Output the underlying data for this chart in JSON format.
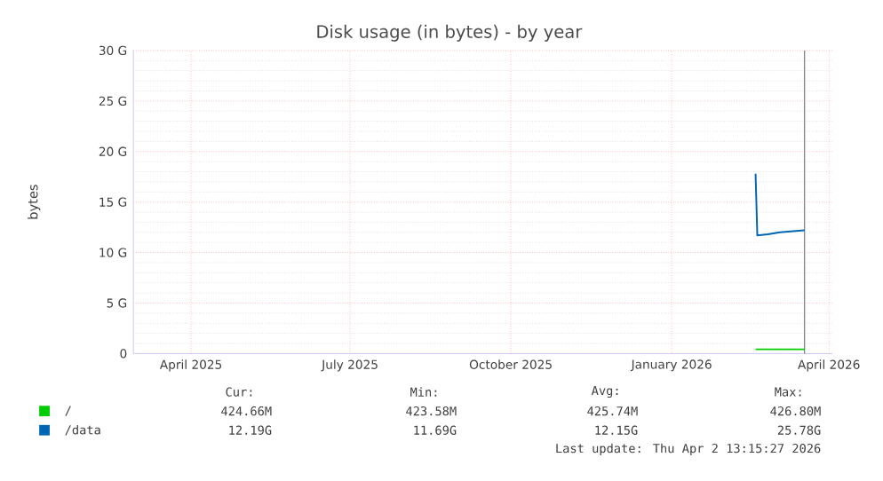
{
  "chart_data": {
    "type": "line",
    "title": "Disk usage (in bytes) - by year",
    "ylabel": "bytes",
    "xlim": [
      "2025-03-14",
      "2026-04-18"
    ],
    "xticks": [
      {
        "value": "2025-04-16",
        "label": "April 2025"
      },
      {
        "value": "2025-07-16",
        "label": "July 2025"
      },
      {
        "value": "2025-10-16",
        "label": "October 2025"
      },
      {
        "value": "2026-01-16",
        "label": "January 2026"
      },
      {
        "value": "2026-04-16",
        "label": "April 2026"
      }
    ],
    "ylim": [
      0,
      30
    ],
    "yticks": [
      {
        "value": 0,
        "label": "0"
      },
      {
        "value": 5,
        "label": "5 G"
      },
      {
        "value": 10,
        "label": "10 G"
      },
      {
        "value": 15,
        "label": "15 G"
      },
      {
        "value": 20,
        "label": "20 G"
      },
      {
        "value": 25,
        "label": "25 G"
      },
      {
        "value": 30,
        "label": "30 G"
      }
    ],
    "grid": true,
    "legend": "bottom left",
    "series": [
      {
        "name": "/",
        "color": "#00cc00",
        "x": [
          "2026-03-05",
          "2026-04-02"
        ],
        "values": [
          0.42,
          0.42
        ]
      },
      {
        "name": "/data",
        "color": "#0066b3",
        "x": [
          "2026-03-05",
          "2026-03-06",
          "2026-03-12",
          "2026-03-19",
          "2026-03-25",
          "2026-04-02"
        ],
        "values": [
          17.8,
          11.7,
          11.8,
          12.0,
          12.1,
          12.2
        ]
      }
    ],
    "ref_lines": [
      {
        "axis": "x",
        "value": "2026-04-02",
        "color": "#888888"
      }
    ],
    "annotations": [
      "Cur:",
      "Min:",
      "Avg:",
      "Max:",
      "424.66M",
      "423.58M",
      "425.74M",
      "426.80M",
      "12.19G",
      "11.69G",
      "12.15G",
      "25.78G",
      "Last update: Thu Apr  2 13:15:27 2026"
    ]
  }
}
